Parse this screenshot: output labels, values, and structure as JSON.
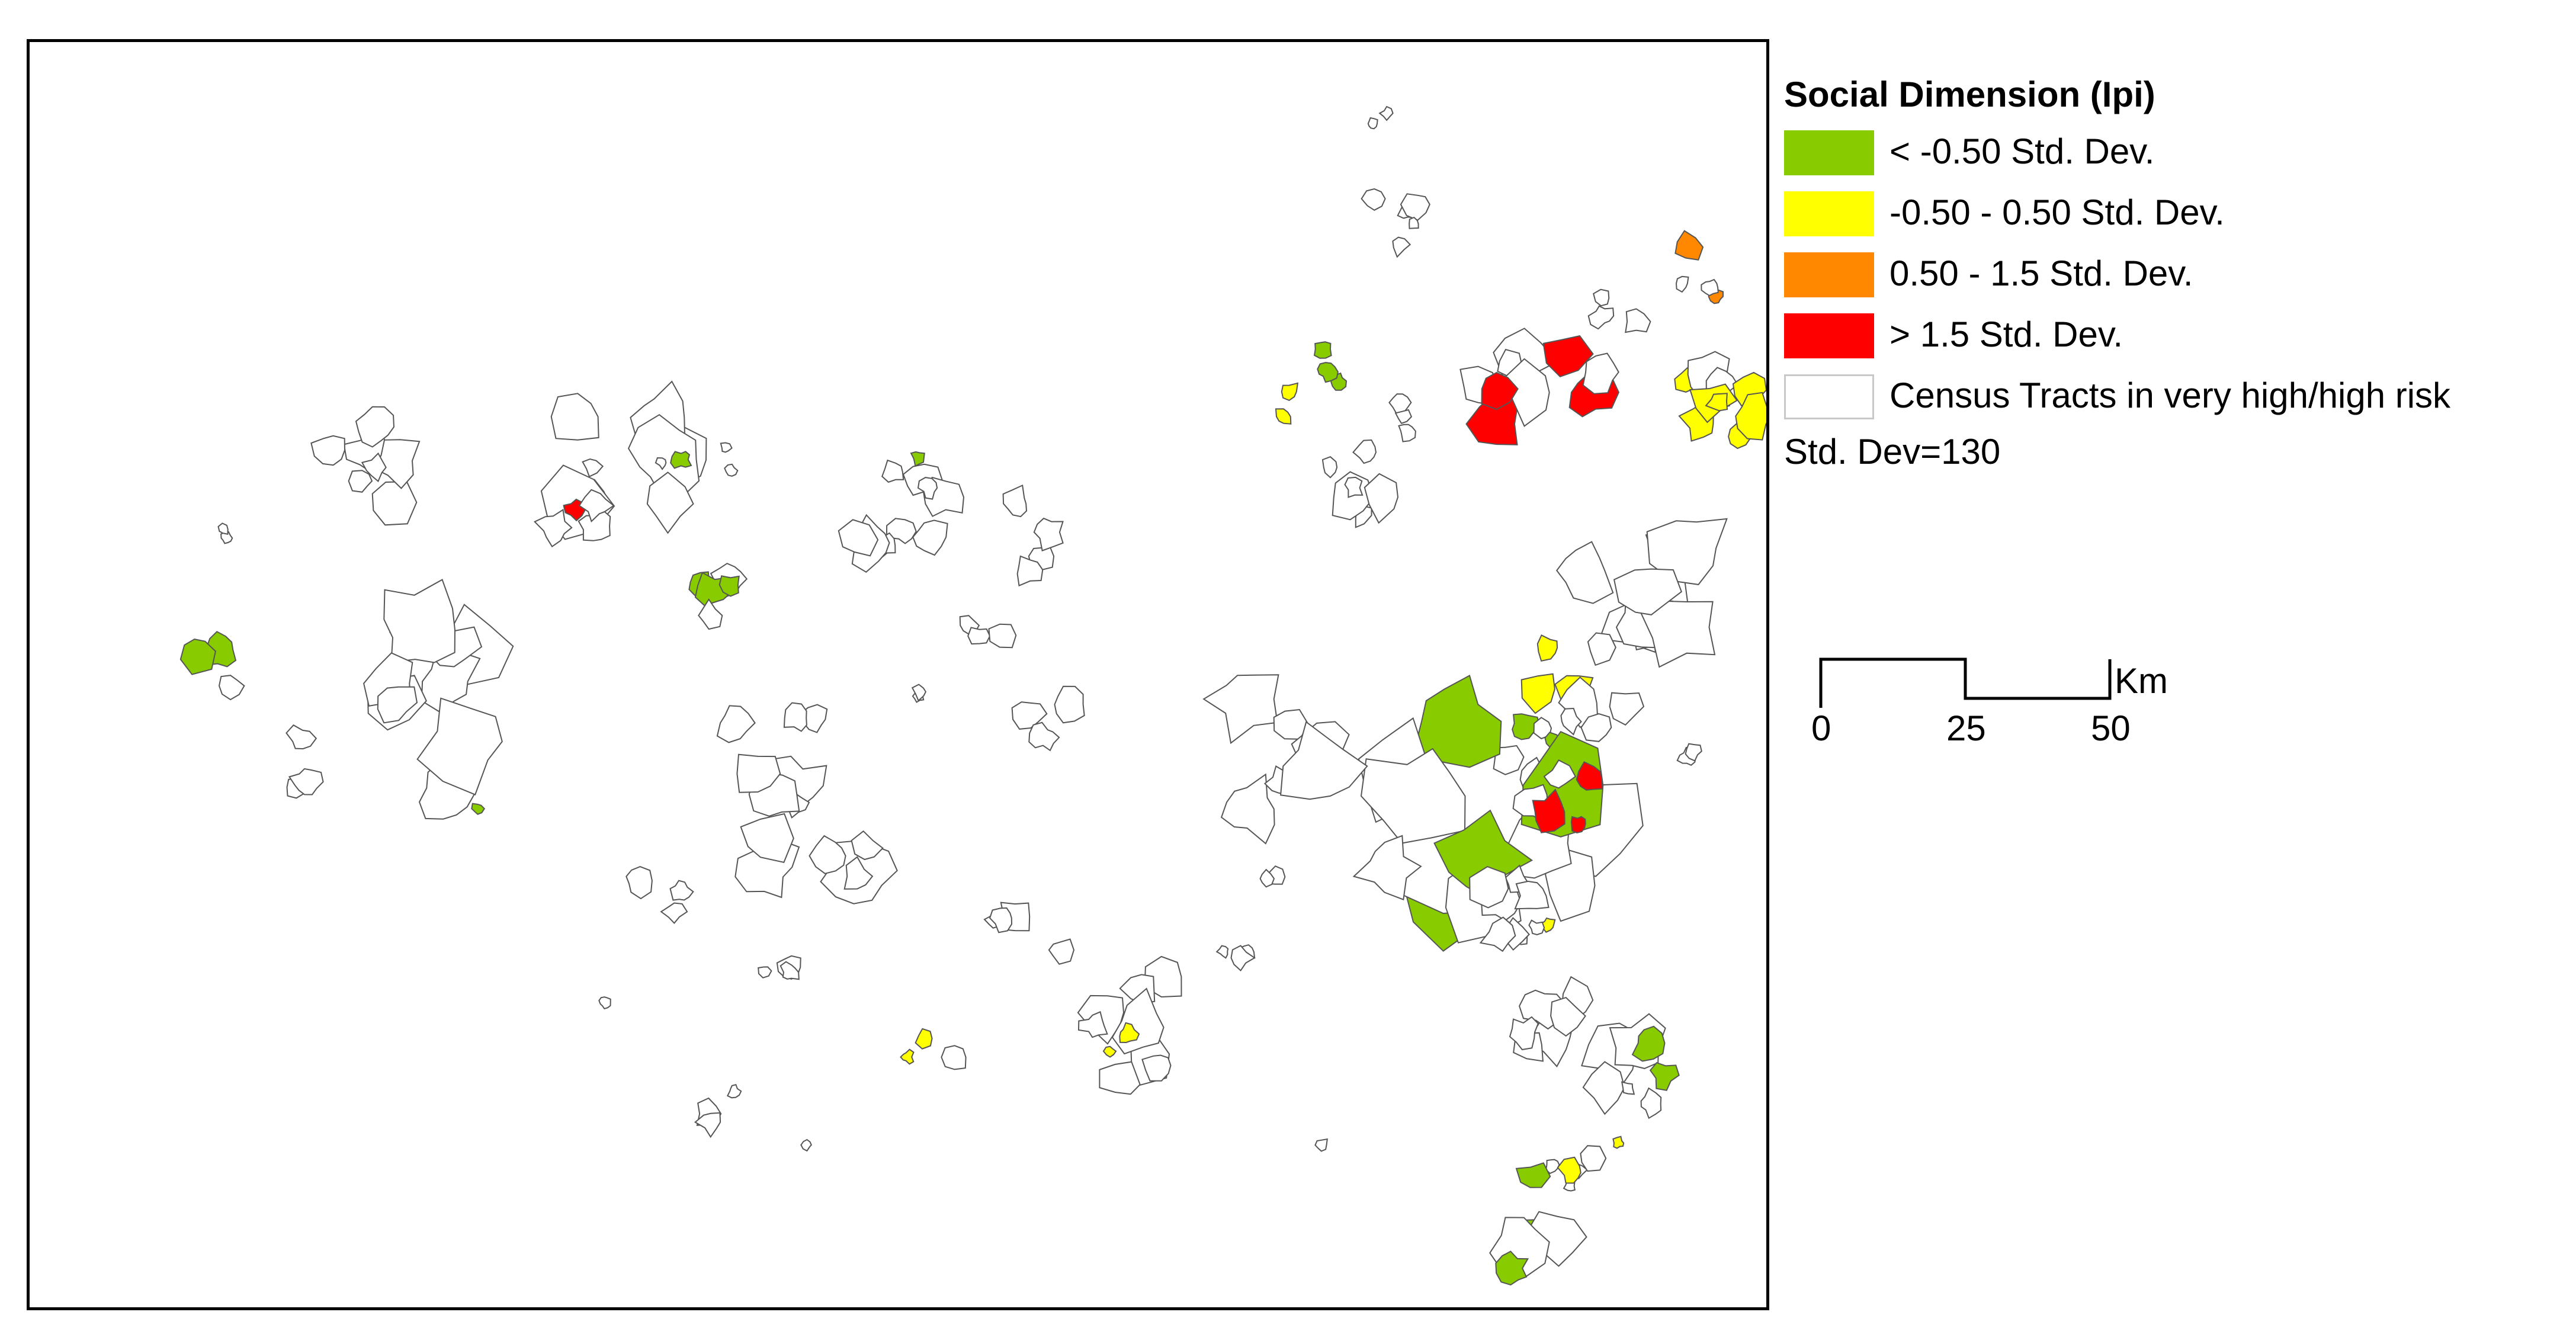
{
  "legend": {
    "title": "Social Dimension (Ipi)",
    "classes": [
      {
        "label": "< -0.50 Std. Dev.",
        "color": "#88cc00"
      },
      {
        "label": "-0.50 - 0.50 Std. Dev.",
        "color": "#ffff00"
      },
      {
        "label": "0.50 - 1.5 Std. Dev.",
        "color": "#ff8800"
      },
      {
        "label": "> 1.5 Std. Dev.",
        "color": "#ff0000"
      },
      {
        "label": "Census Tracts in very high/high risk",
        "color": "#ffffff"
      }
    ],
    "stddev_note": "Std. Dev=130"
  },
  "scale_bar": {
    "unit": "Km",
    "ticks": [
      "0",
      "25",
      "50"
    ]
  }
}
